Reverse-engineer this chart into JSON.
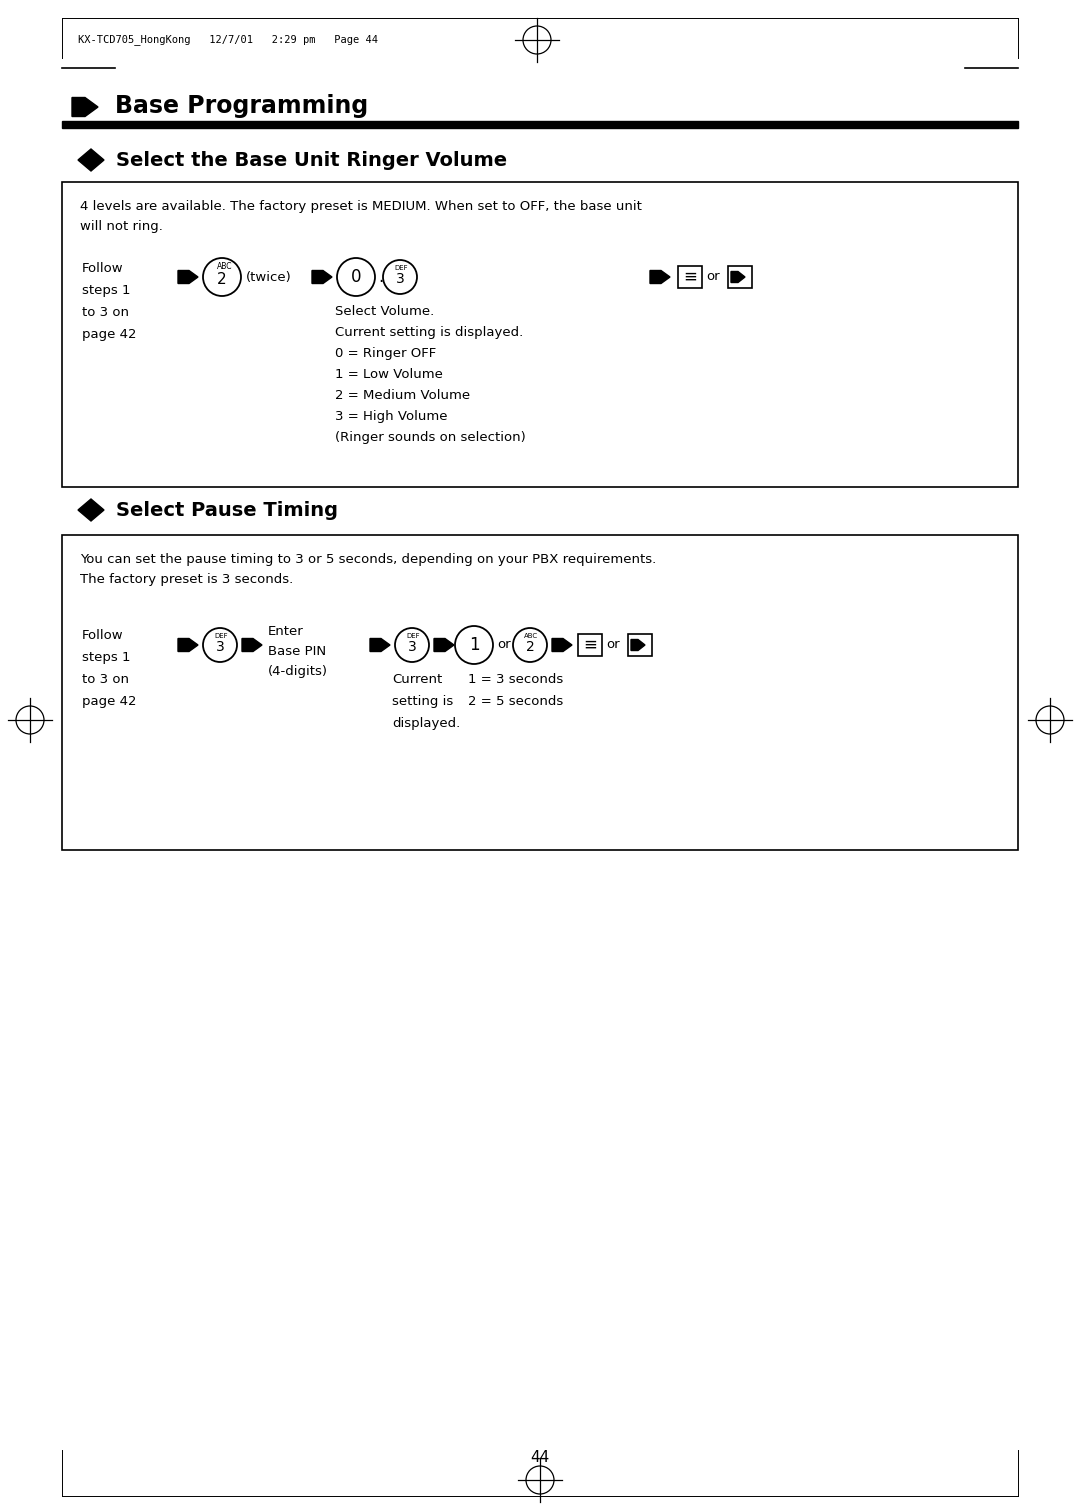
{
  "bg_color": "#ffffff",
  "page_width": 10.8,
  "page_height": 15.09,
  "header_text": "KX-TCD705_HongKong   12/7/01   2:29 pm   Page 44",
  "section_title": "Base Programming",
  "section1_title": "Select the Base Unit Ringer Volume",
  "section1_box_line1": "4 levels are available. The factory preset is MEDIUM. When set to OFF, the base unit",
  "section1_box_line2": "will not ring.",
  "section1_follow_lines": [
    "Follow",
    "steps 1",
    "to 3 on",
    "page 42"
  ],
  "section1_twice": "(twice)",
  "section1_desc_lines": [
    "Select Volume.",
    "Current setting is displayed.",
    "0 = Ringer OFF",
    "1 = Low Volume",
    "2 = Medium Volume",
    "3 = High Volume",
    "(Ringer sounds on selection)"
  ],
  "section2_title": "Select Pause Timing",
  "section2_box_line1": "You can set the pause timing to 3 or 5 seconds, depending on your PBX requirements.",
  "section2_box_line2": "The factory preset is 3 seconds.",
  "section2_follow_lines": [
    "Follow",
    "steps 1",
    "to 3 on",
    "page 42"
  ],
  "section2_enter_lines": [
    "Enter",
    "Base PIN",
    "(4-digits)"
  ],
  "section2_current_lines": [
    "Current",
    "setting is",
    "displayed."
  ],
  "section2_desc_lines": [
    "1 = 3 seconds",
    "2 = 5 seconds"
  ],
  "page_number": "44"
}
